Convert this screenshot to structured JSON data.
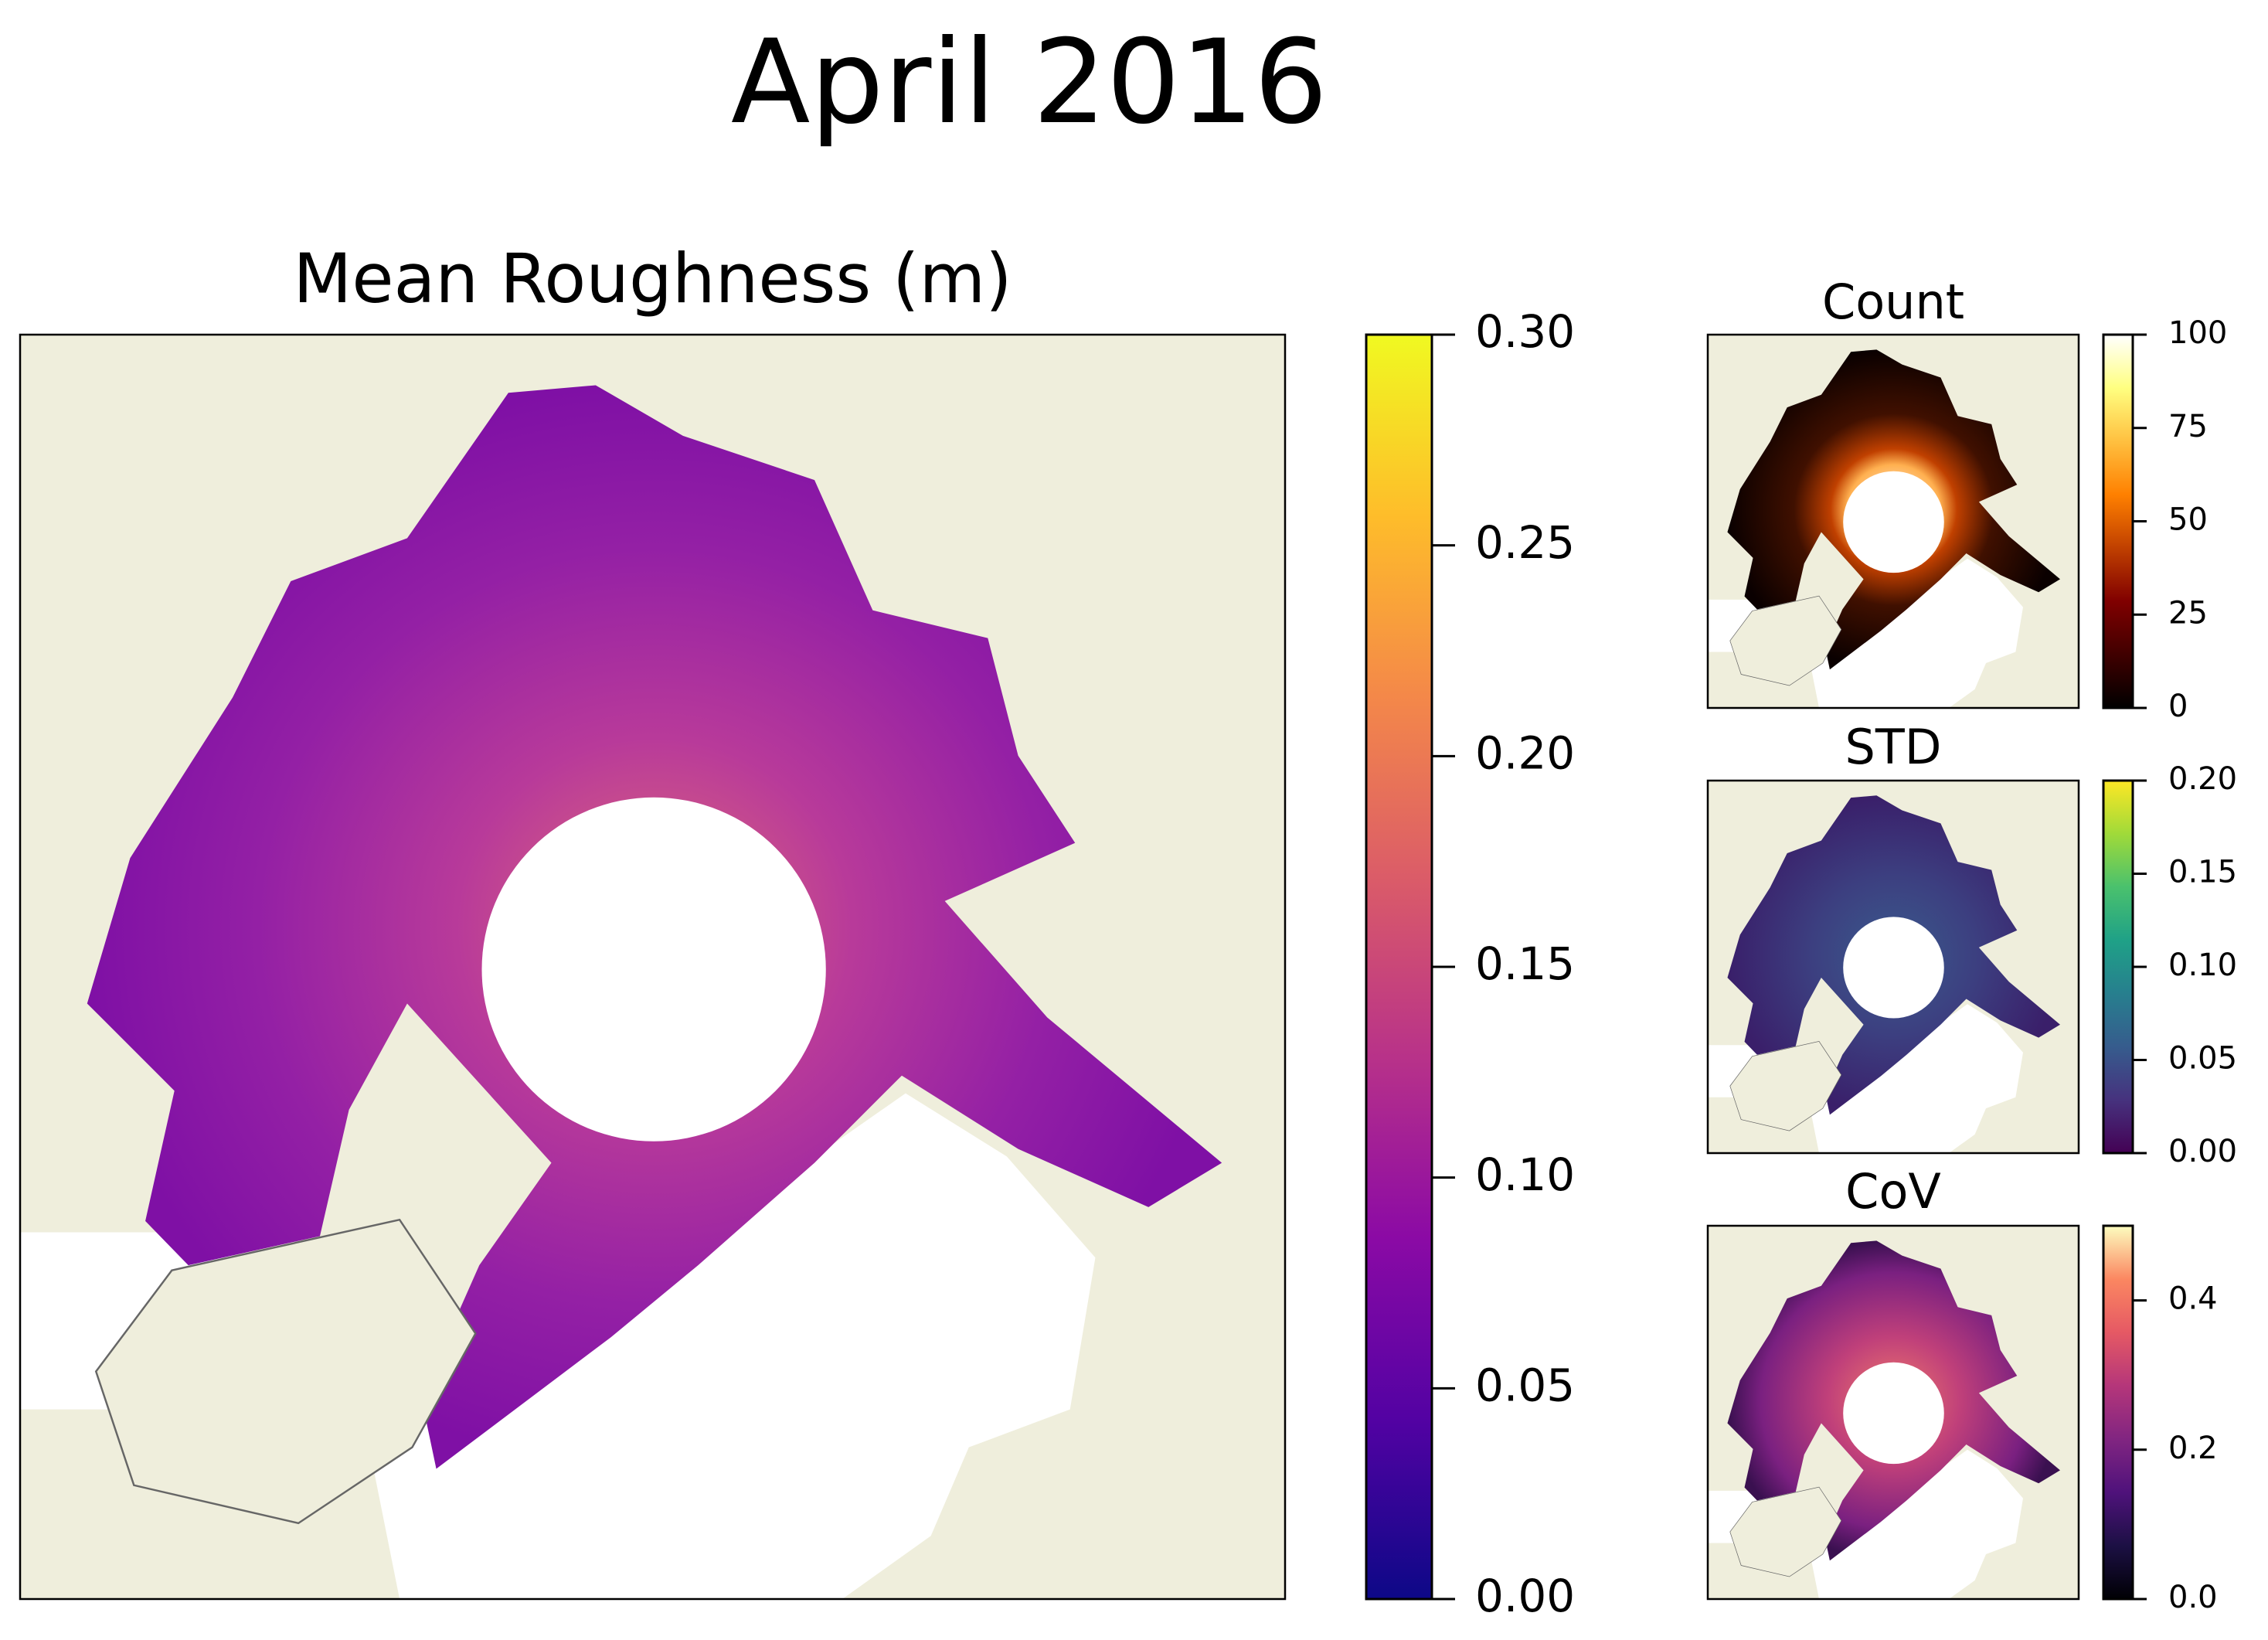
{
  "title": "April 2016",
  "panels": [
    {
      "title": "Mean Roughness (m)",
      "colormap": "plasma",
      "lim": [
        0,
        0.3
      ],
      "ticks": [
        {
          "value": 0,
          "label": "0.00"
        },
        0.05,
        {
          "value": 0.1,
          "label": "0.10"
        },
        0.15,
        {
          "value": 0.2,
          "label": "0.20"
        },
        0.25,
        {
          "value": 0.3,
          "label": "0.30"
        }
      ]
    },
    {
      "title": "Count",
      "colormap": "afmhot",
      "lim": [
        0,
        100
      ],
      "ticks": [
        0,
        25,
        50,
        75,
        100
      ]
    },
    {
      "title": "STD",
      "colormap": "viridis",
      "lim": [
        0,
        0.2
      ],
      "ticks": [
        {
          "value": 0,
          "label": "0.00"
        },
        0.05,
        {
          "value": 0.1,
          "label": "0.10"
        },
        0.15,
        {
          "value": 0.2,
          "label": "0.20"
        }
      ]
    },
    {
      "title": "CoV",
      "colormap": "magma",
      "lim": [
        0,
        0.5
      ],
      "ticks": [
        {
          "value": 0,
          "label": "0.0"
        },
        0.2,
        0.4
      ]
    }
  ]
}
